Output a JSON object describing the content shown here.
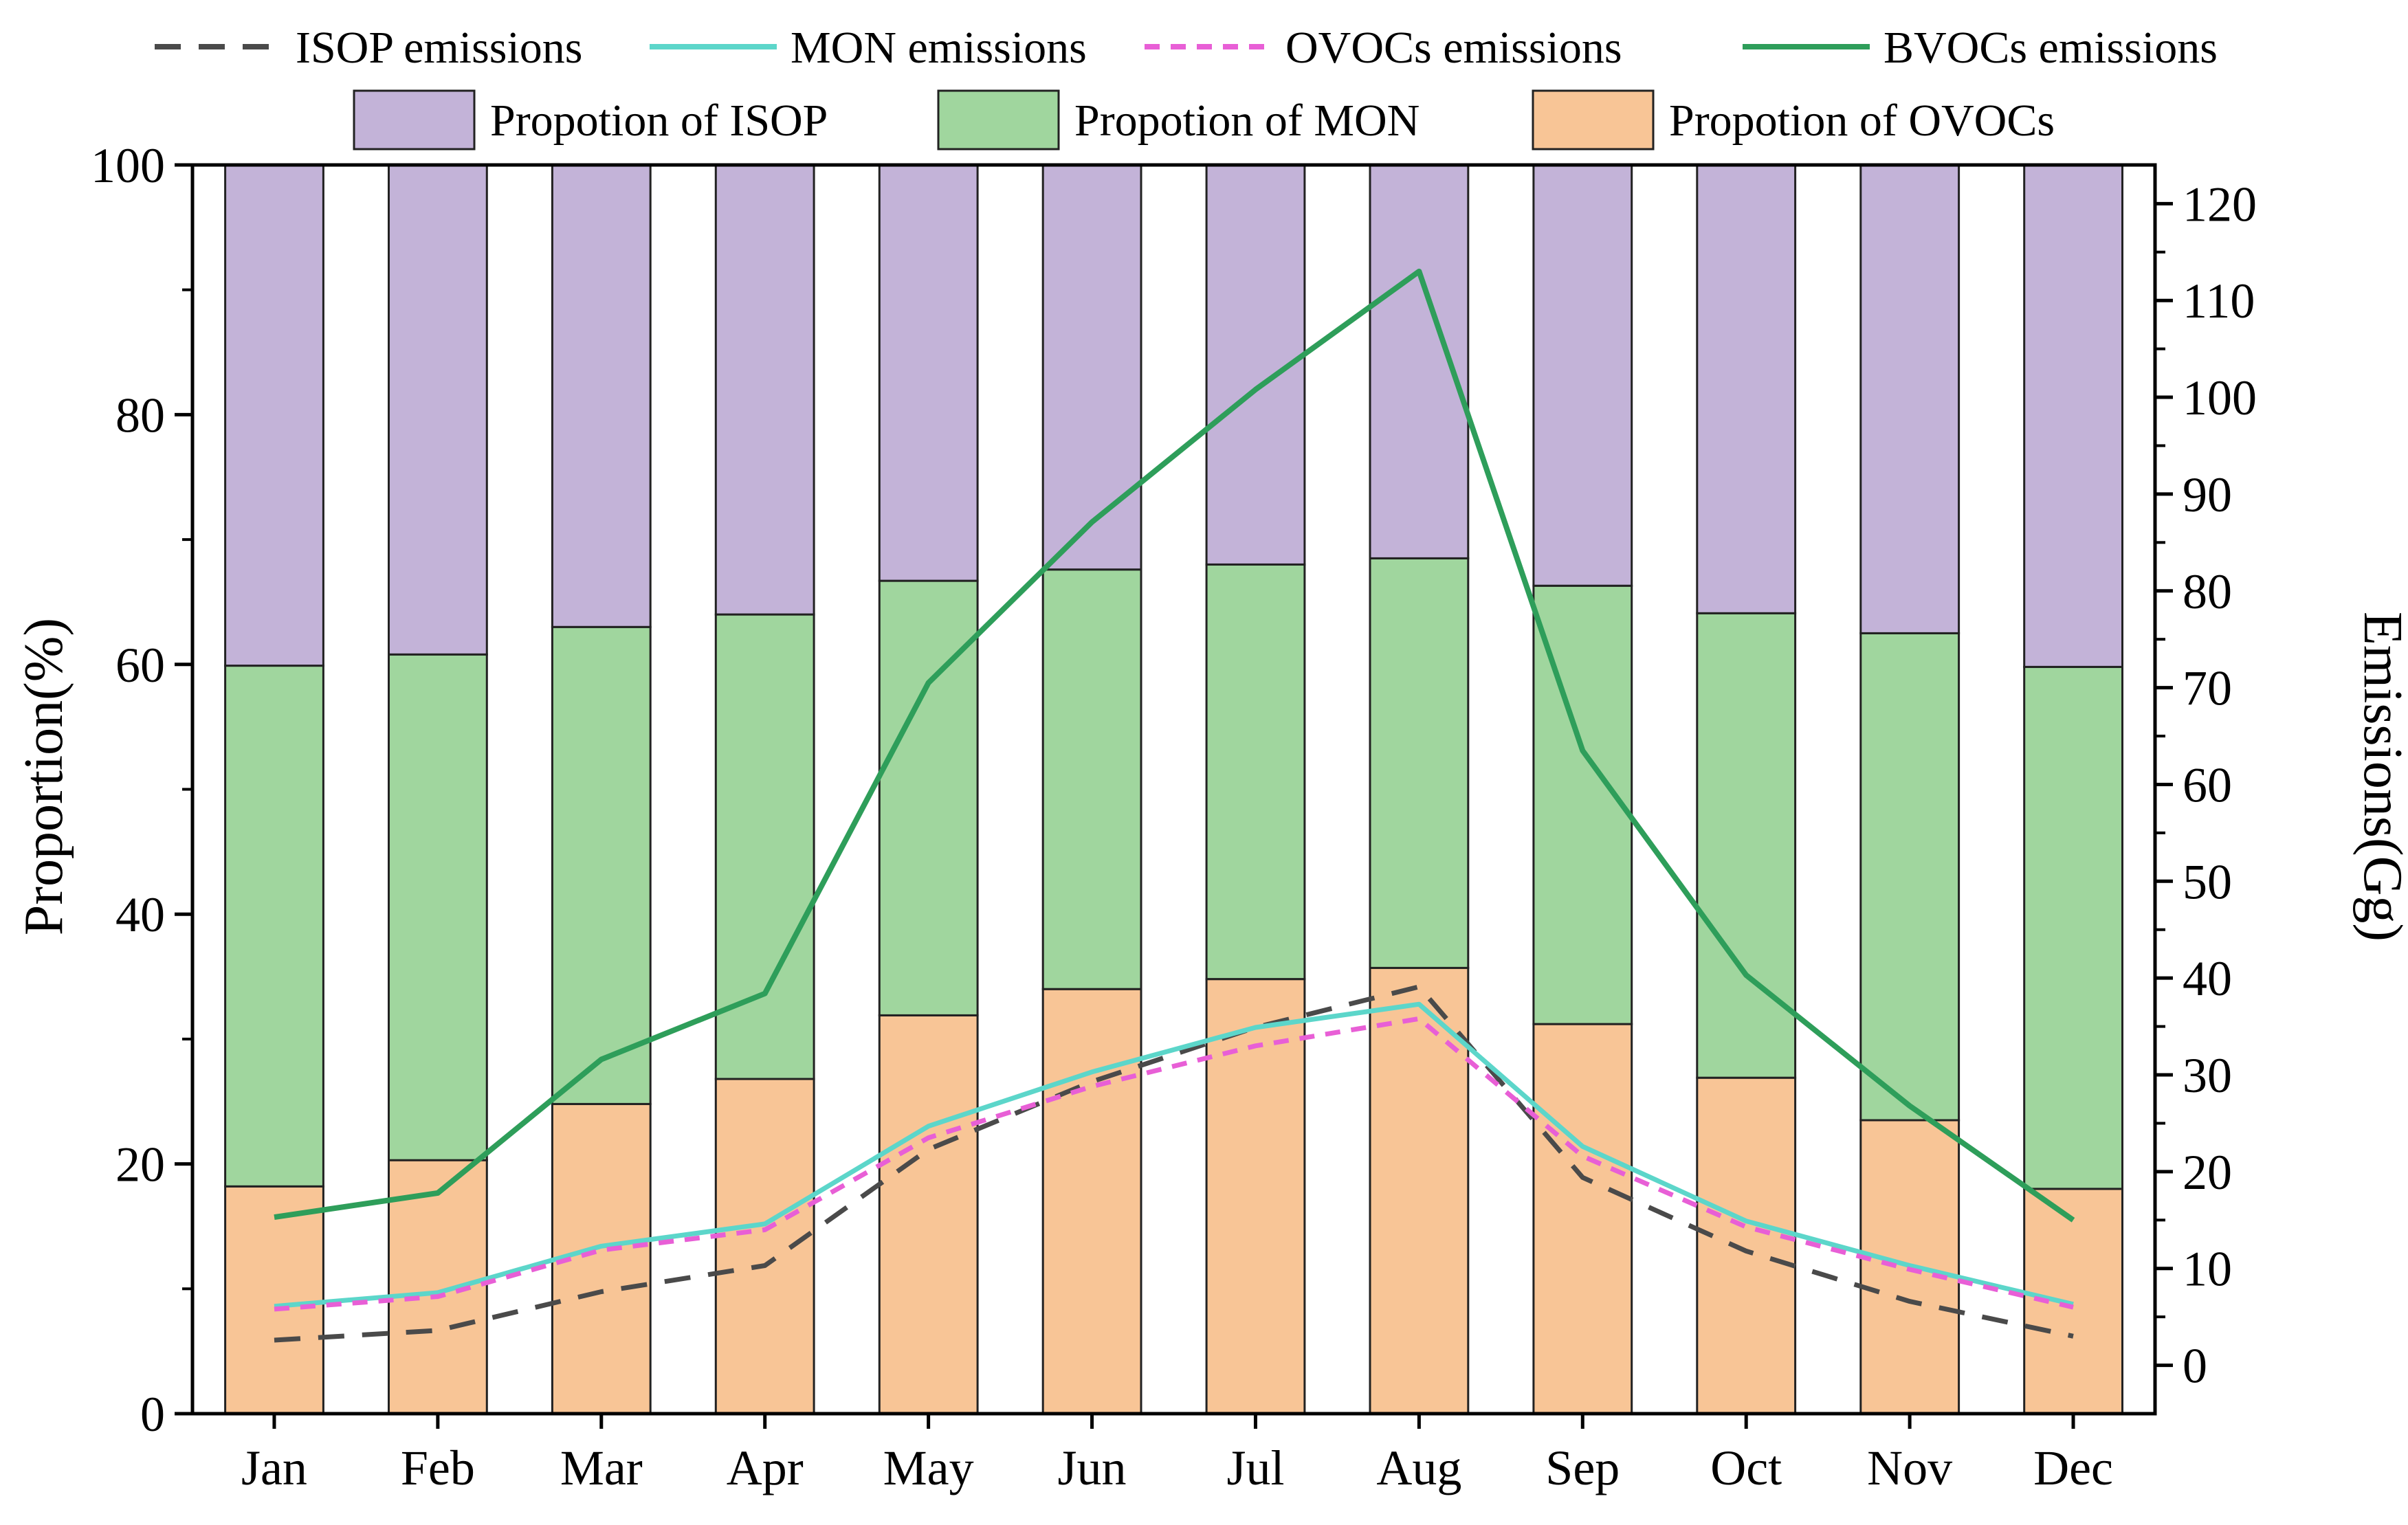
{
  "chart_data": {
    "type": "bar",
    "subtype": "stacked-bar-with-lines",
    "categories": [
      "Jan",
      "Feb",
      "Mar",
      "Apr",
      "May",
      "Jun",
      "Jul",
      "Aug",
      "Sep",
      "Oct",
      "Nov",
      "Dec"
    ],
    "bar_series": [
      {
        "name": "Propotion of OVOCs",
        "color": "#F8C596",
        "values": [
          18.2,
          20.3,
          24.8,
          26.8,
          31.9,
          34.0,
          34.8,
          35.7,
          31.2,
          26.9,
          23.5,
          18.0
        ]
      },
      {
        "name": "Propotion of MON",
        "color": "#A0D69E",
        "values": [
          41.7,
          40.5,
          38.2,
          37.2,
          34.8,
          33.6,
          33.2,
          32.8,
          35.1,
          37.2,
          39.0,
          41.8
        ]
      },
      {
        "name": "Propotion of ISOP",
        "color": "#C3B3D8",
        "values": [
          40.1,
          39.2,
          37.0,
          36.0,
          33.3,
          32.4,
          32.0,
          31.5,
          33.7,
          35.9,
          37.5,
          40.2
        ]
      }
    ],
    "line_series": [
      {
        "name": "ISOP emissions",
        "color": "#4A4A4A",
        "dash": "dashed",
        "values": [
          2.6,
          3.6,
          7.6,
          10.3,
          22.3,
          29.3,
          34.9,
          39.1,
          19.4,
          11.8,
          6.6,
          3.0
        ]
      },
      {
        "name": "MON emissions",
        "color": "#5CD6CA",
        "dash": "solid",
        "values": [
          6.1,
          7.5,
          12.3,
          14.6,
          24.7,
          30.3,
          34.9,
          37.3,
          22.6,
          14.9,
          10.3,
          6.3
        ]
      },
      {
        "name": "OVOCs emissions",
        "color": "#E85FD6",
        "dash": "dotted",
        "values": [
          5.8,
          7.1,
          11.9,
          14.0,
          23.5,
          28.8,
          33.0,
          35.8,
          21.6,
          14.3,
          9.9,
          6.0
        ]
      },
      {
        "name": "BVOCs emissions",
        "color": "#2E9E5A",
        "dash": "solid",
        "values": [
          15.3,
          17.8,
          31.6,
          38.4,
          70.5,
          87.1,
          100.8,
          113.0,
          63.5,
          40.3,
          26.8,
          15.0
        ]
      }
    ],
    "left_axis": {
      "label": "Proportion(%)",
      "min": 0,
      "max": 100,
      "ticks": [
        0,
        20,
        40,
        60,
        80,
        100
      ]
    },
    "right_axis": {
      "label": "Emissions(Gg)",
      "min": -5,
      "max": 124,
      "ticks": [
        0,
        10,
        20,
        30,
        40,
        50,
        60,
        70,
        80,
        90,
        100,
        110,
        120
      ]
    },
    "legend_position": "top",
    "grid": false
  }
}
